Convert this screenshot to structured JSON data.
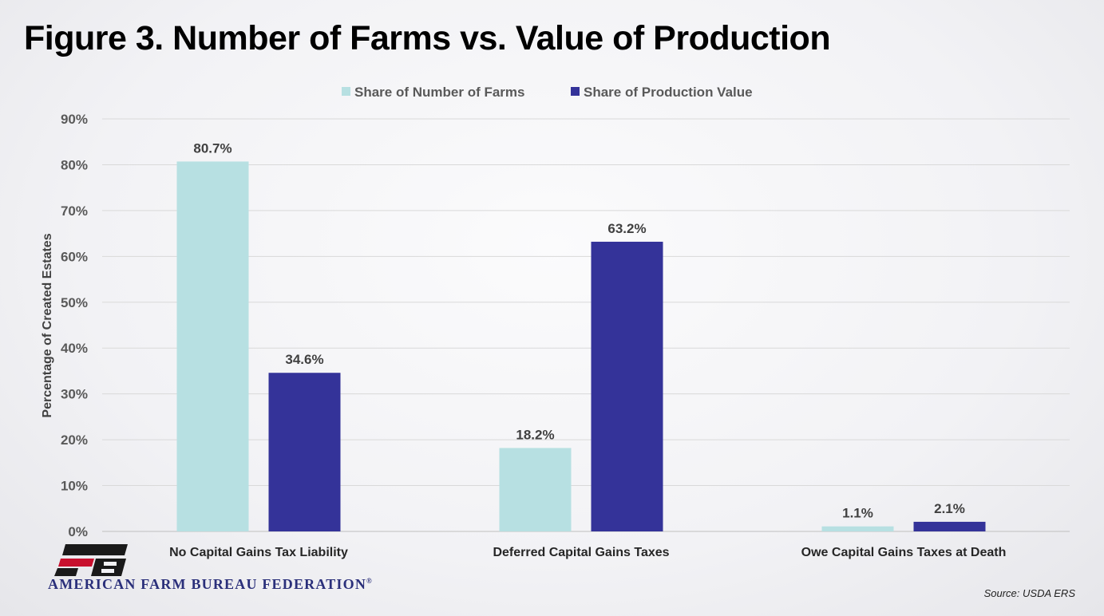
{
  "title": "Figure 3. Number of Farms vs. Value of Production",
  "source": "Source: USDA ERS",
  "org_name": "AMERICAN FARM BUREAU FEDERATION",
  "org_mark": "®",
  "logo_icon": "fb-logo-icon",
  "colors": {
    "series1": "#b7e0e2",
    "series2": "#343399",
    "grid": "#d9d9d9",
    "logo_red": "#c8102e",
    "logo_dark": "#1a1a1a"
  },
  "chart_data": {
    "type": "bar",
    "ylabel": "Percentage of Created Estates",
    "xlabel": "",
    "ylim": [
      0,
      90
    ],
    "yticks": [
      0,
      10,
      20,
      30,
      40,
      50,
      60,
      70,
      80,
      90
    ],
    "ytick_labels": [
      "0%",
      "10%",
      "20%",
      "30%",
      "40%",
      "50%",
      "60%",
      "70%",
      "80%",
      "90%"
    ],
    "grid": true,
    "legend_position": "top-center",
    "categories": [
      "No Capital Gains Tax Liability",
      "Deferred Capital Gains Taxes",
      "Owe Capital Gains Taxes at Death"
    ],
    "series": [
      {
        "name": "Share of Number of Farms",
        "values": [
          80.7,
          18.2,
          1.1
        ],
        "labels": [
          "80.7%",
          "18.2%",
          "1.1%"
        ]
      },
      {
        "name": "Share of Production Value",
        "values": [
          34.6,
          63.2,
          2.1
        ],
        "labels": [
          "34.6%",
          "63.2%",
          "2.1%"
        ]
      }
    ]
  }
}
